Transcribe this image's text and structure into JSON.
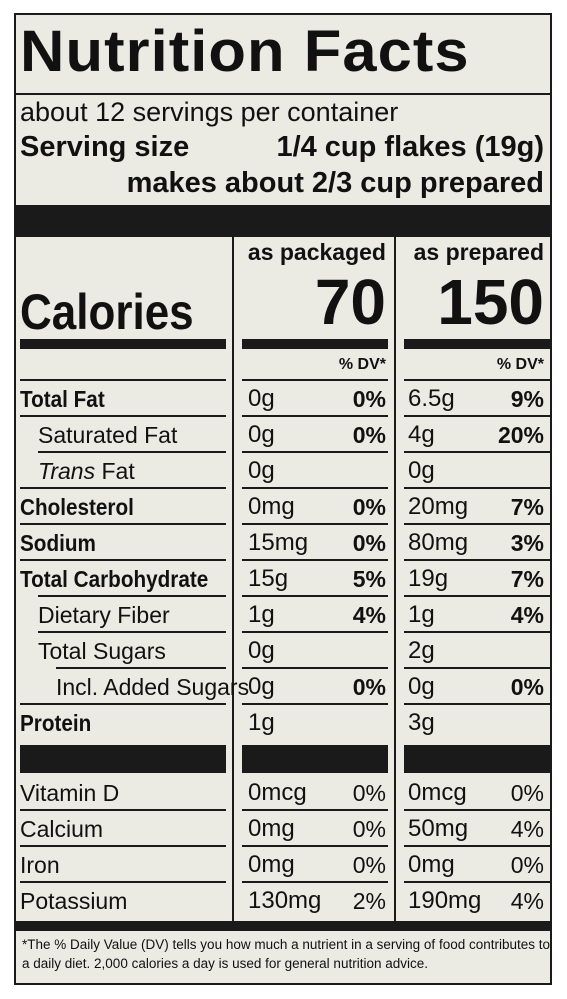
{
  "title": "Nutrition Facts",
  "servings_per_container": "about 12 servings per container",
  "serving_size_label": "Serving size",
  "serving_size_value": "1/4 cup flakes (19g)",
  "serving_size_prepared": "makes about 2/3 cup prepared",
  "columns": {
    "packaged": "as packaged",
    "prepared": "as prepared"
  },
  "calories": {
    "label": "Calories",
    "packaged": "70",
    "prepared": "150"
  },
  "dv_header": "% DV*",
  "nutrients": [
    {
      "name": "Total Fat",
      "packaged_amount": "0g",
      "packaged_dv": "0%",
      "prepared_amount": "6.5g",
      "prepared_dv": "9%"
    },
    {
      "name": "Saturated Fat",
      "packaged_amount": "0g",
      "packaged_dv": "0%",
      "prepared_amount": "4g",
      "prepared_dv": "20%"
    },
    {
      "name_italic": "Trans",
      "name_rest": " Fat",
      "packaged_amount": "0g",
      "packaged_dv": "",
      "prepared_amount": "0g",
      "prepared_dv": ""
    },
    {
      "name": "Cholesterol",
      "packaged_amount": "0mg",
      "packaged_dv": "0%",
      "prepared_amount": "20mg",
      "prepared_dv": "7%"
    },
    {
      "name": "Sodium",
      "packaged_amount": "15mg",
      "packaged_dv": "0%",
      "prepared_amount": "80mg",
      "prepared_dv": "3%"
    },
    {
      "name": "Total Carbohydrate",
      "packaged_amount": "15g",
      "packaged_dv": "5%",
      "prepared_amount": "19g",
      "prepared_dv": "7%"
    },
    {
      "name": "Dietary Fiber",
      "packaged_amount": "1g",
      "packaged_dv": "4%",
      "prepared_amount": "1g",
      "prepared_dv": "4%"
    },
    {
      "name": "Total Sugars",
      "packaged_amount": "0g",
      "packaged_dv": "",
      "prepared_amount": "2g",
      "prepared_dv": ""
    },
    {
      "name": "Incl. Added Sugars",
      "packaged_amount": "0g",
      "packaged_dv": "0%",
      "prepared_amount": "0g",
      "prepared_dv": "0%"
    },
    {
      "name": "Protein",
      "packaged_amount": "1g",
      "packaged_dv": "",
      "prepared_amount": "3g",
      "prepared_dv": ""
    }
  ],
  "vitamins": [
    {
      "name": "Vitamin D",
      "packaged_amount": "0mcg",
      "packaged_dv": "0%",
      "prepared_amount": "0mcg",
      "prepared_dv": "0%"
    },
    {
      "name": "Calcium",
      "packaged_amount": "0mg",
      "packaged_dv": "0%",
      "prepared_amount": "50mg",
      "prepared_dv": "4%"
    },
    {
      "name": "Iron",
      "packaged_amount": "0mg",
      "packaged_dv": "0%",
      "prepared_amount": "0mg",
      "prepared_dv": "0%"
    },
    {
      "name": "Potassium",
      "packaged_amount": "130mg",
      "packaged_dv": "2%",
      "prepared_amount": "190mg",
      "prepared_dv": "4%"
    }
  ],
  "footnote": "*The % Daily Value (DV) tells you how much a nutrient in a serving of food contributes to a daily diet. 2,000 calories a day is used for general nutrition advice."
}
